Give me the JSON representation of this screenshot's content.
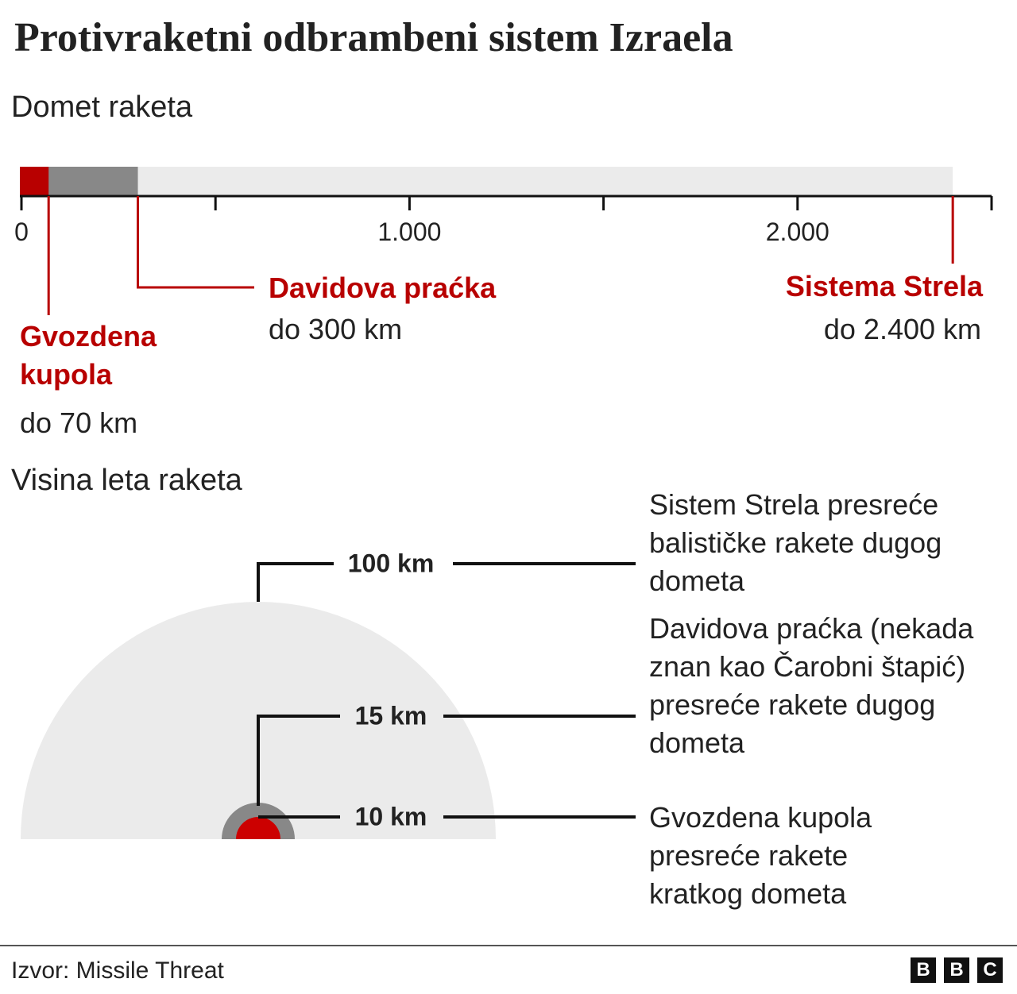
{
  "title": "Protivraketni odbrambeni sistem Izraela",
  "range": {
    "title": "Domet raketa",
    "xlim": [
      0,
      2500
    ],
    "xticks": [
      0,
      {
        "value": 1000,
        "label": "1.000"
      },
      {
        "value": 2000,
        "label": "2.000"
      }
    ],
    "minor_xticks": [
      500,
      1500,
      2500
    ],
    "systems": [
      {
        "name": "Gvozdena kupola",
        "label": "do 70 km",
        "value": 70,
        "color": "#b80000"
      },
      {
        "name": "Davidova praćka",
        "label": "do 300 km",
        "value": 300,
        "color": "#888888"
      },
      {
        "name": "Sistema Strela",
        "label": "do 2.400 km",
        "value": 2400,
        "color": "#ebebeb"
      }
    ]
  },
  "altitude": {
    "title": "Visina leta raketa",
    "levels": [
      {
        "label": "100 km",
        "text": "Sistem Strela presreće balističke rakete dugog dometa"
      },
      {
        "label": "15 km",
        "text": "Davidova praćka (nekada znan kao Čarobni štapić) presreće rakete dugog dometa"
      },
      {
        "label": "10 km",
        "text": "Gvozdena kupola presreće rakete kratkog dometa"
      }
    ]
  },
  "footer": {
    "source": "Izvor: Missile Threat",
    "logo": [
      "B",
      "B",
      "C"
    ]
  }
}
